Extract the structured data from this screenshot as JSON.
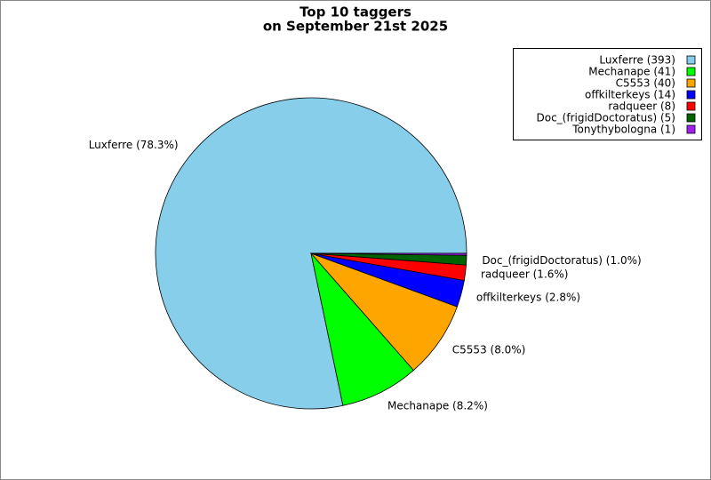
{
  "chart_data": {
    "type": "pie",
    "title": "Top 10 taggers",
    "subtitle": "on September 21st 2025",
    "categories": [
      "Luxferre",
      "Mechanape",
      "C5553",
      "offkilterkeys",
      "radqueer",
      "Doc_(frigidDoctoratus)",
      "Tonythybologna"
    ],
    "values": [
      393,
      41,
      40,
      14,
      8,
      5,
      1
    ],
    "value_labels": [
      "Luxferre (393)",
      "Mechanape (41)",
      "C5553 (40)",
      "offkilterkeys (14)",
      "radqueer (8)",
      "Doc_(frigidDoctoratus) (5)",
      "Tonythybologna (1)"
    ],
    "slice_labels": [
      "Luxferre (78.3%)",
      "Mechanape (8.2%)",
      "C5553 (8.0%)",
      "offkilterkeys (2.8%)",
      "radqueer (1.6%)",
      "Doc_(frigidDoctoratus) (1.0%)",
      null
    ],
    "colors": [
      "#87ceeb",
      "#00ff00",
      "#ffa500",
      "#0000ff",
      "#ff0000",
      "#006400",
      "#a020f0"
    ],
    "legend": "upper right"
  }
}
